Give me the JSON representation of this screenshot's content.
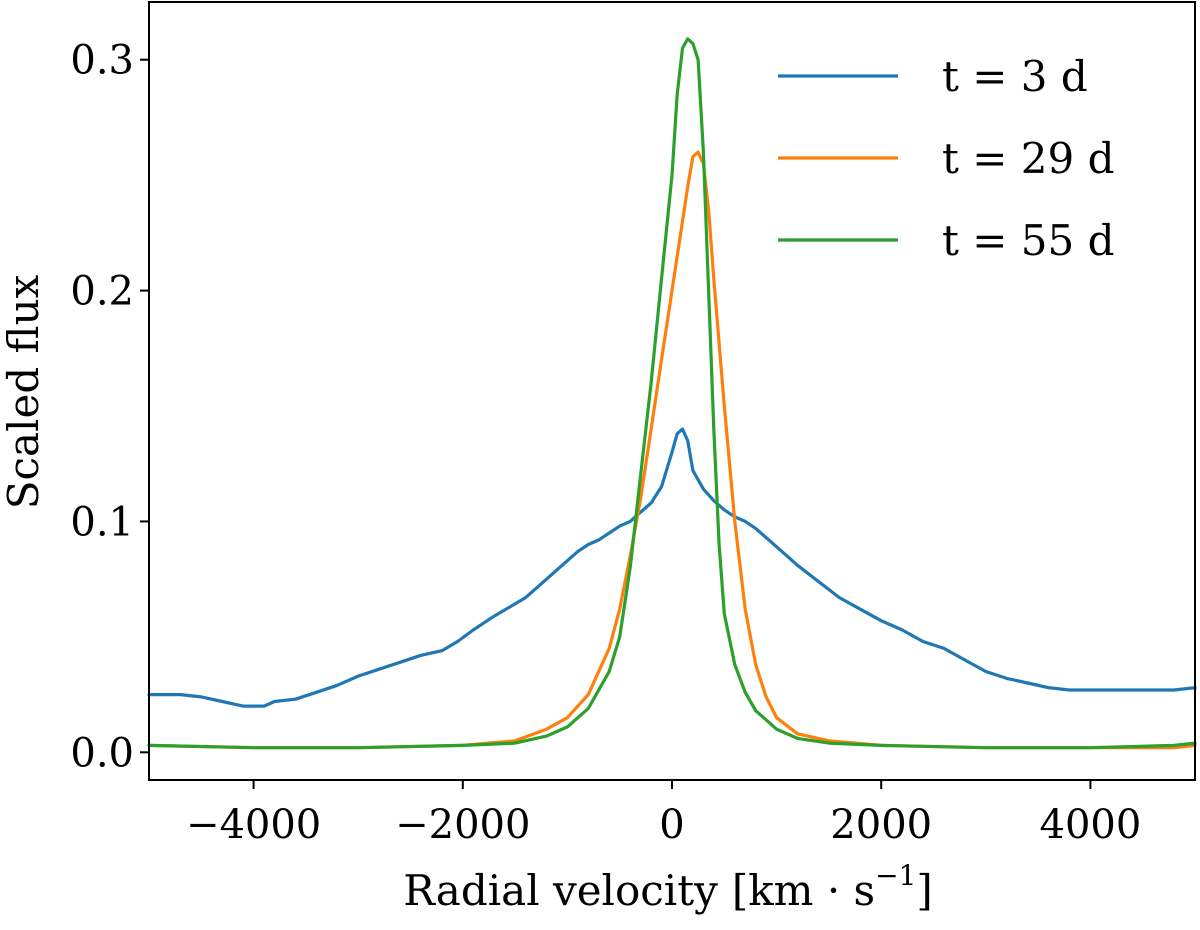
{
  "chart_data": {
    "type": "line",
    "title": "",
    "xlabel": "Radial velocity",
    "xlabel_unit": "[km · s",
    "xlabel_unit_exp": "−1",
    "xlabel_unit_close": "]",
    "ylabel": "Scaled flux",
    "xlim": [
      -5000,
      5000
    ],
    "ylim": [
      -0.012,
      0.325
    ],
    "grid": false,
    "legend_position": "top-right",
    "x_ticks": [
      -4000,
      -2000,
      0,
      2000,
      4000
    ],
    "x_tick_labels": [
      "−4000",
      "−2000",
      "0",
      "2000",
      "4000"
    ],
    "y_ticks": [
      0.0,
      0.1,
      0.2,
      0.3
    ],
    "y_tick_labels": [
      "0.0",
      "0.1",
      "0.2",
      "0.3"
    ],
    "series": [
      {
        "name": "t = 3 d",
        "color": "#1f77b4",
        "x": [
          -5000,
          -4700,
          -4500,
          -4300,
          -4100,
          -3900,
          -3800,
          -3600,
          -3400,
          -3200,
          -3000,
          -2800,
          -2600,
          -2400,
          -2200,
          -2050,
          -1900,
          -1700,
          -1550,
          -1400,
          -1300,
          -1200,
          -1100,
          -1000,
          -900,
          -800,
          -700,
          -600,
          -500,
          -400,
          -300,
          -200,
          -100,
          0,
          50,
          100,
          150,
          200,
          300,
          400,
          500,
          600,
          700,
          800,
          900,
          1000,
          1100,
          1200,
          1400,
          1600,
          1800,
          2000,
          2200,
          2400,
          2600,
          2800,
          3000,
          3200,
          3400,
          3600,
          3800,
          4000,
          4200,
          4400,
          4600,
          4800,
          5000
        ],
        "y": [
          0.025,
          0.025,
          0.024,
          0.022,
          0.02,
          0.02,
          0.022,
          0.023,
          0.026,
          0.029,
          0.033,
          0.036,
          0.039,
          0.042,
          0.044,
          0.048,
          0.053,
          0.059,
          0.063,
          0.067,
          0.071,
          0.075,
          0.079,
          0.083,
          0.087,
          0.09,
          0.092,
          0.095,
          0.098,
          0.1,
          0.104,
          0.108,
          0.115,
          0.13,
          0.138,
          0.14,
          0.135,
          0.122,
          0.114,
          0.109,
          0.105,
          0.102,
          0.1,
          0.097,
          0.093,
          0.089,
          0.085,
          0.081,
          0.074,
          0.067,
          0.062,
          0.057,
          0.053,
          0.048,
          0.045,
          0.04,
          0.035,
          0.032,
          0.03,
          0.028,
          0.027,
          0.027,
          0.027,
          0.027,
          0.027,
          0.027,
          0.028
        ]
      },
      {
        "name": "t = 29 d",
        "color": "#ff7f0e",
        "x": [
          -5000,
          -4000,
          -3000,
          -2000,
          -1500,
          -1200,
          -1000,
          -800,
          -600,
          -500,
          -400,
          -300,
          -200,
          -100,
          0,
          100,
          150,
          200,
          250,
          300,
          350,
          400,
          500,
          600,
          700,
          800,
          900,
          1000,
          1200,
          1500,
          2000,
          3000,
          4000,
          4800,
          5000
        ],
        "y": [
          0.003,
          0.002,
          0.002,
          0.003,
          0.005,
          0.01,
          0.015,
          0.025,
          0.045,
          0.062,
          0.085,
          0.11,
          0.14,
          0.17,
          0.2,
          0.23,
          0.245,
          0.258,
          0.26,
          0.255,
          0.235,
          0.205,
          0.15,
          0.1,
          0.062,
          0.038,
          0.024,
          0.015,
          0.008,
          0.005,
          0.003,
          0.002,
          0.002,
          0.002,
          0.003
        ]
      },
      {
        "name": "t = 55 d",
        "color": "#2ca02c",
        "x": [
          -5000,
          -4000,
          -3000,
          -2000,
          -1500,
          -1200,
          -1000,
          -800,
          -600,
          -500,
          -400,
          -300,
          -200,
          -100,
          0,
          50,
          100,
          150,
          200,
          250,
          300,
          350,
          400,
          450,
          500,
          600,
          700,
          800,
          1000,
          1200,
          1500,
          2000,
          3000,
          4000,
          4800,
          5000
        ],
        "y": [
          0.003,
          0.002,
          0.002,
          0.003,
          0.004,
          0.007,
          0.011,
          0.019,
          0.035,
          0.05,
          0.08,
          0.12,
          0.16,
          0.205,
          0.25,
          0.285,
          0.305,
          0.309,
          0.307,
          0.3,
          0.26,
          0.2,
          0.14,
          0.09,
          0.06,
          0.038,
          0.026,
          0.018,
          0.01,
          0.006,
          0.004,
          0.003,
          0.002,
          0.002,
          0.003,
          0.004
        ]
      }
    ]
  }
}
